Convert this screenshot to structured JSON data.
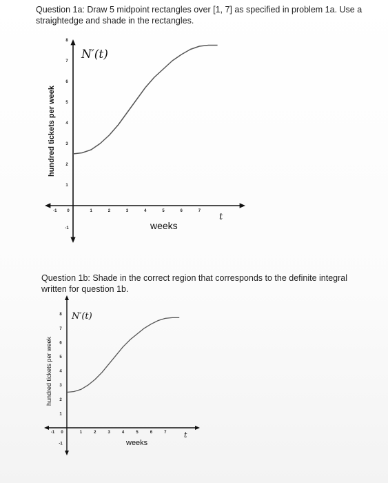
{
  "question_1a": "Question 1a: Draw 5 midpoint rectangles over [1, 7] as specified in problem 1a. Use a straightedge and shade in the rectangles.",
  "question_1b": "Question 1b: Shade in the correct region that corresponds to the definite integral written for question 1b.",
  "chart_data": [
    {
      "type": "line",
      "title": "N′(t)",
      "ylabel": "hundred tickets per week",
      "xlabel": "weeks",
      "x_axis_end_label": "t",
      "x_ticks": [
        "-1",
        "0",
        "1",
        "2",
        "3",
        "4",
        "5",
        "6",
        "7"
      ],
      "y_ticks": [
        "-1",
        "1",
        "2",
        "3",
        "4",
        "5",
        "6",
        "7",
        "8"
      ],
      "xlim": [
        -1,
        8
      ],
      "ylim": [
        -1,
        8
      ],
      "series": [
        {
          "x": [
            0,
            0.5,
            1,
            1.5,
            2,
            2.5,
            3,
            3.5,
            4,
            4.5,
            5,
            5.5,
            6,
            6.5,
            7,
            7.5,
            8
          ],
          "y": [
            2.5,
            2.55,
            2.7,
            3.0,
            3.4,
            3.9,
            4.5,
            5.1,
            5.7,
            6.2,
            6.6,
            7.0,
            7.3,
            7.55,
            7.7,
            7.75,
            7.75
          ]
        }
      ]
    },
    {
      "type": "line",
      "title": "N′(t)",
      "ylabel": "hundred tickets per week",
      "xlabel": "weeks",
      "x_axis_end_label": "t",
      "x_ticks": [
        "-1",
        "0",
        "1",
        "2",
        "3",
        "4",
        "5",
        "6",
        "7"
      ],
      "y_ticks": [
        "-1",
        "1",
        "2",
        "3",
        "4",
        "5",
        "6",
        "7",
        "8"
      ],
      "xlim": [
        -1,
        8
      ],
      "ylim": [
        -1,
        8
      ],
      "series": [
        {
          "x": [
            0,
            0.5,
            1,
            1.5,
            2,
            2.5,
            3,
            3.5,
            4,
            4.5,
            5,
            5.5,
            6,
            6.5,
            7,
            7.5,
            8
          ],
          "y": [
            2.5,
            2.55,
            2.7,
            3.0,
            3.4,
            3.9,
            4.5,
            5.1,
            5.7,
            6.2,
            6.6,
            7.0,
            7.3,
            7.55,
            7.7,
            7.75,
            7.75
          ]
        }
      ]
    }
  ]
}
